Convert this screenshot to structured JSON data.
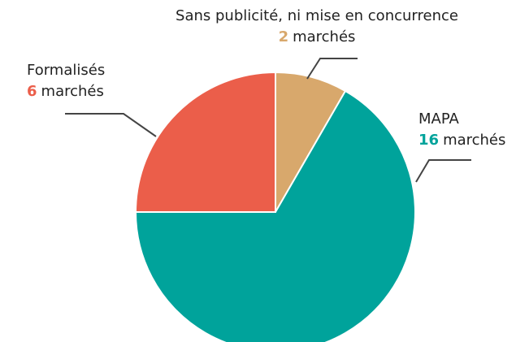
{
  "chart_data": {
    "type": "pie",
    "categories": [
      "Sans publicité, ni mise en concurrence",
      "MAPA",
      "Formalisés"
    ],
    "values": [
      2,
      16,
      6
    ],
    "value_unit": "marchés",
    "colors": [
      "#d8a86c",
      "#00a39b",
      "#eb5e4a"
    ]
  }
}
